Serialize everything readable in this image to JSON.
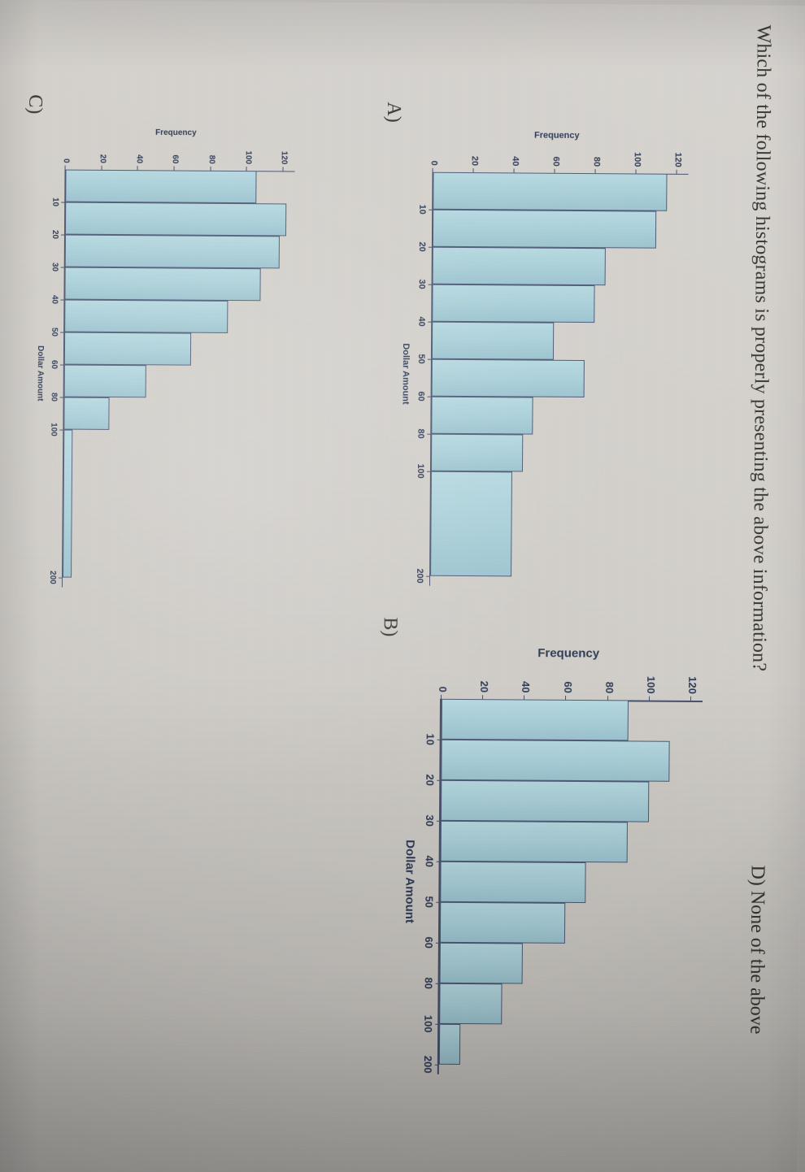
{
  "question": {
    "title": "Which of the following histograms is properly presenting the above information?",
    "option_a": "A)",
    "option_b": "B)",
    "option_c": "C)",
    "option_d": "D) None of the above"
  },
  "colors": {
    "bar_fill": "#a9cfd9",
    "bar_border": "#4d5a74",
    "axis": "#46506a",
    "tick_text": "#2d3a55",
    "question_text": "#37352f",
    "paper": "#d2cfcb"
  },
  "chart_data": [
    {
      "id": "A",
      "type": "bar",
      "title": "",
      "xlabel": "Dollar Amount",
      "ylabel": "Frequency",
      "ylim": [
        0,
        120
      ],
      "yticks": [
        0,
        20,
        40,
        60,
        80,
        100,
        120
      ],
      "xticks": [
        10,
        20,
        30,
        40,
        50,
        60,
        80,
        100,
        200
      ],
      "values": [
        115,
        110,
        85,
        80,
        60,
        75,
        50,
        45,
        40
      ],
      "legend": "none",
      "grid": false,
      "layout_hint": "classes up to 100 drawn equal width; last class 100-200 drawn wide but with unadjusted bar height"
    },
    {
      "id": "B",
      "type": "bar",
      "title": "",
      "xlabel": "Dollar Amount",
      "ylabel": "Frequency",
      "ylim": [
        0,
        120
      ],
      "yticks": [
        0,
        20,
        40,
        60,
        80,
        100,
        120
      ],
      "xticks": [
        10,
        20,
        30,
        40,
        50,
        60,
        80,
        100,
        200
      ],
      "values": [
        90,
        110,
        100,
        90,
        70,
        60,
        40,
        30,
        10
      ],
      "legend": "none",
      "grid": false,
      "layout_hint": "all nine classes drawn with equal bar widths despite unequal class widths"
    },
    {
      "id": "C",
      "type": "bar",
      "title": "",
      "xlabel": "Dollar Amount",
      "ylabel": "Frequency",
      "ylim": [
        0,
        120
      ],
      "yticks": [
        0,
        20,
        40,
        60,
        80,
        100,
        120
      ],
      "xticks": [
        10,
        20,
        30,
        40,
        50,
        60,
        80,
        100,
        200
      ],
      "values": [
        105,
        122,
        118,
        108,
        90,
        70,
        45,
        25,
        5
      ],
      "legend": "none",
      "grid": false,
      "layout_hint": "last class 100-200 drawn wide with very short (density-adjusted) bar"
    }
  ]
}
